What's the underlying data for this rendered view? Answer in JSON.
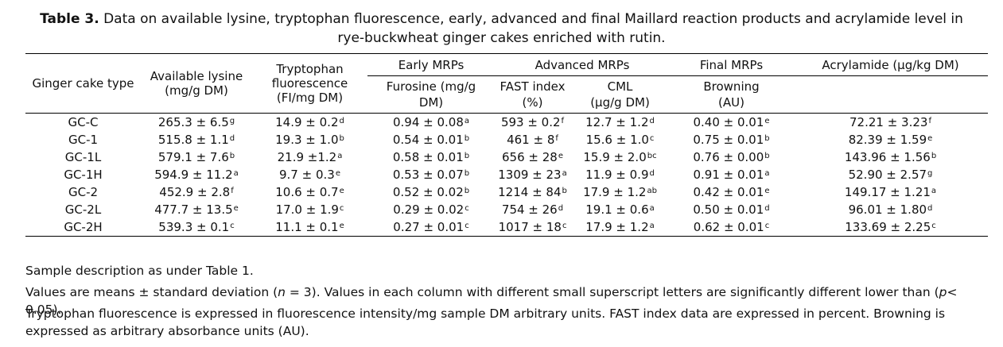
{
  "caption": {
    "label": "Table 3.",
    "text_line1": "Data on available lysine, tryptophan fluorescence, early, advanced and final Maillard reaction products and acrylamide level in",
    "text_line2": "rye-buckwheat ginger cakes enriched with rutin."
  },
  "header": {
    "col_type": "Ginger cake type",
    "col_lysine": [
      "Available lysine",
      "(mg/g DM)"
    ],
    "col_trp": [
      "Tryptophan",
      "fluorescence",
      "(FI/mg DM)"
    ],
    "group_early": "Early MRPs",
    "group_advanced": "Advanced MRPs",
    "group_final": "Final MRPs",
    "col_acrylamide": "Acrylamide (µg/kg DM)",
    "sub_furosine": [
      "Furosine (mg/g",
      "DM)"
    ],
    "sub_fast": [
      "FAST index",
      "(%)"
    ],
    "sub_cml": [
      "CML",
      "(µg/g DM)"
    ],
    "sub_browning": [
      "Browning",
      "(AU)"
    ]
  },
  "rows": [
    {
      "type": "GC-C",
      "lysine": "265.3 ± 6.5",
      "lysine_sup": "g",
      "trp": "14.9 ± 0.2",
      "trp_sup": "d",
      "furosine": "0.94 ± 0.08",
      "furosine_sup": "a",
      "fast": "593 ± 0.2",
      "fast_sup": "f",
      "cml": "12.7 ± 1.2",
      "cml_sup": "d",
      "browning": "0.40 ± 0.01",
      "browning_sup": "e",
      "acryl": "72.21 ± 3.23",
      "acryl_sup": "f"
    },
    {
      "type": "GC-1",
      "lysine": "515.8 ± 1.1",
      "lysine_sup": "d",
      "trp": "19.3 ± 1.0",
      "trp_sup": "b",
      "furosine": "0.54 ± 0.01",
      "furosine_sup": "b",
      "fast": "461 ± 8",
      "fast_sup": "f",
      "cml": "15.6 ± 1.0",
      "cml_sup": "c",
      "browning": "0.75 ± 0.01",
      "browning_sup": "b",
      "acryl": "82.39 ± 1.59",
      "acryl_sup": "e"
    },
    {
      "type": "GC-1L",
      "lysine": "579.1 ± 7.6",
      "lysine_sup": "b",
      "trp": "21.9 ±1.2",
      "trp_sup": "a",
      "furosine": "0.58 ± 0.01",
      "furosine_sup": "b",
      "fast": "656 ± 28",
      "fast_sup": "e",
      "cml": "15.9 ± 2.0",
      "cml_sup": "bc",
      "browning": "0.76 ± 0.00",
      "browning_sup": "b",
      "acryl": "143.96 ± 1.56",
      "acryl_sup": "b"
    },
    {
      "type": "GC-1H",
      "lysine": "594.9 ± 11.2",
      "lysine_sup": "a",
      "trp": "9.7 ± 0.3",
      "trp_sup": "e",
      "furosine": "0.53 ± 0.07",
      "furosine_sup": "b",
      "fast": "1309 ± 23",
      "fast_sup": "a",
      "cml": "11.9 ± 0.9",
      "cml_sup": "d",
      "browning": "0.91 ± 0.01",
      "browning_sup": "a",
      "acryl": "52.90 ± 2.57",
      "acryl_sup": "g"
    },
    {
      "type": "GC-2",
      "lysine": "452.9 ± 2.8",
      "lysine_sup": "f",
      "trp": "10.6 ± 0.7",
      "trp_sup": "e",
      "furosine": "0.52 ± 0.02",
      "furosine_sup": "b",
      "fast": "1214 ± 84",
      "fast_sup": "b",
      "cml": "17.9 ± 1.2",
      "cml_sup": "ab",
      "browning": "0.42 ± 0.01",
      "browning_sup": "e",
      "acryl": "149.17 ± 1.21",
      "acryl_sup": "a"
    },
    {
      "type": "GC-2L",
      "lysine": "477.7 ± 13.5",
      "lysine_sup": "e",
      "trp": "17.0 ± 1.9",
      "trp_sup": "c",
      "furosine": "0.29 ± 0.02",
      "furosine_sup": "c",
      "fast": "754 ± 26",
      "fast_sup": "d",
      "cml": "19.1 ± 0.6",
      "cml_sup": "a",
      "browning": "0.50 ± 0.01",
      "browning_sup": "d",
      "acryl": "96.01 ± 1.80",
      "acryl_sup": "d"
    },
    {
      "type": "GC-2H",
      "lysine": "539.3 ± 0.1",
      "lysine_sup": "c",
      "trp": "11.1 ± 0.1",
      "trp_sup": "e",
      "furosine": "0.27 ± 0.01",
      "furosine_sup": "c",
      "fast": "1017 ± 18",
      "fast_sup": "c",
      "cml": "17.9 ± 1.2",
      "cml_sup": "a",
      "browning": "0.62 ± 0.01",
      "browning_sup": "c",
      "acryl": "133.69 ± 2.25",
      "acryl_sup": "c"
    }
  ],
  "notes": {
    "note1": "Sample description as under Table 1.",
    "note2_a": "Values are means ± standard deviation (",
    "note2_n": "n",
    "note2_b": " = 3). Values in each column with different small superscript letters are significantly different lower than (",
    "note2_p": "p",
    "note2_c": "< 0.05).",
    "note3": "Tryptophan fluorescence is expressed in fluorescence intensity/mg sample DM arbitrary units. FAST index data are expressed in percent. Browning is expressed as arbitrary absorbance units (AU)."
  }
}
